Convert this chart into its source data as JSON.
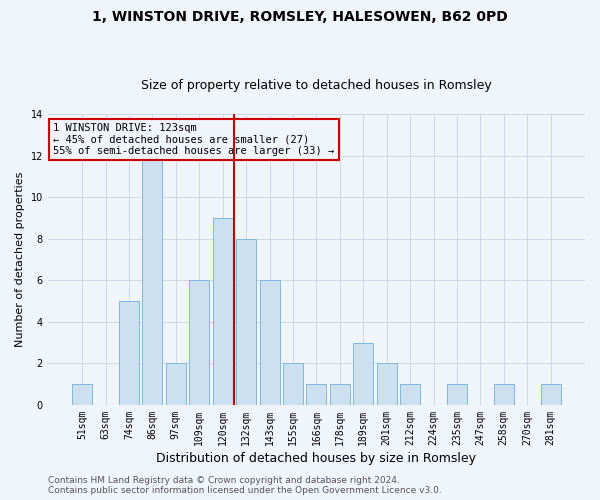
{
  "title": "1, WINSTON DRIVE, ROMSLEY, HALESOWEN, B62 0PD",
  "subtitle": "Size of property relative to detached houses in Romsley",
  "xlabel": "Distribution of detached houses by size in Romsley",
  "ylabel": "Number of detached properties",
  "categories": [
    "51sqm",
    "63sqm",
    "74sqm",
    "86sqm",
    "97sqm",
    "109sqm",
    "120sqm",
    "132sqm",
    "143sqm",
    "155sqm",
    "166sqm",
    "178sqm",
    "189sqm",
    "201sqm",
    "212sqm",
    "224sqm",
    "235sqm",
    "247sqm",
    "258sqm",
    "270sqm",
    "281sqm"
  ],
  "values": [
    1,
    0,
    5,
    12,
    2,
    6,
    9,
    8,
    6,
    2,
    1,
    1,
    3,
    2,
    1,
    0,
    1,
    0,
    1,
    0,
    1
  ],
  "bar_color": "#cce0f0",
  "bar_edge_color": "#7eb8d9",
  "vline_x": 6.5,
  "vline_color": "#cc0000",
  "annotation_box_text": "1 WINSTON DRIVE: 123sqm\n← 45% of detached houses are smaller (27)\n55% of semi-detached houses are larger (33) →",
  "annotation_box_color": "#cc0000",
  "ylim": [
    0,
    14
  ],
  "yticks": [
    0,
    2,
    4,
    6,
    8,
    10,
    12,
    14
  ],
  "grid_color": "#d0d8e8",
  "background_color": "#f0f4fb",
  "footer_text": "Contains HM Land Registry data © Crown copyright and database right 2024.\nContains public sector information licensed under the Open Government Licence v3.0.",
  "title_fontsize": 10,
  "subtitle_fontsize": 9,
  "xlabel_fontsize": 9,
  "ylabel_fontsize": 8,
  "tick_fontsize": 7,
  "footer_fontsize": 6.5,
  "annot_fontsize": 7.5
}
